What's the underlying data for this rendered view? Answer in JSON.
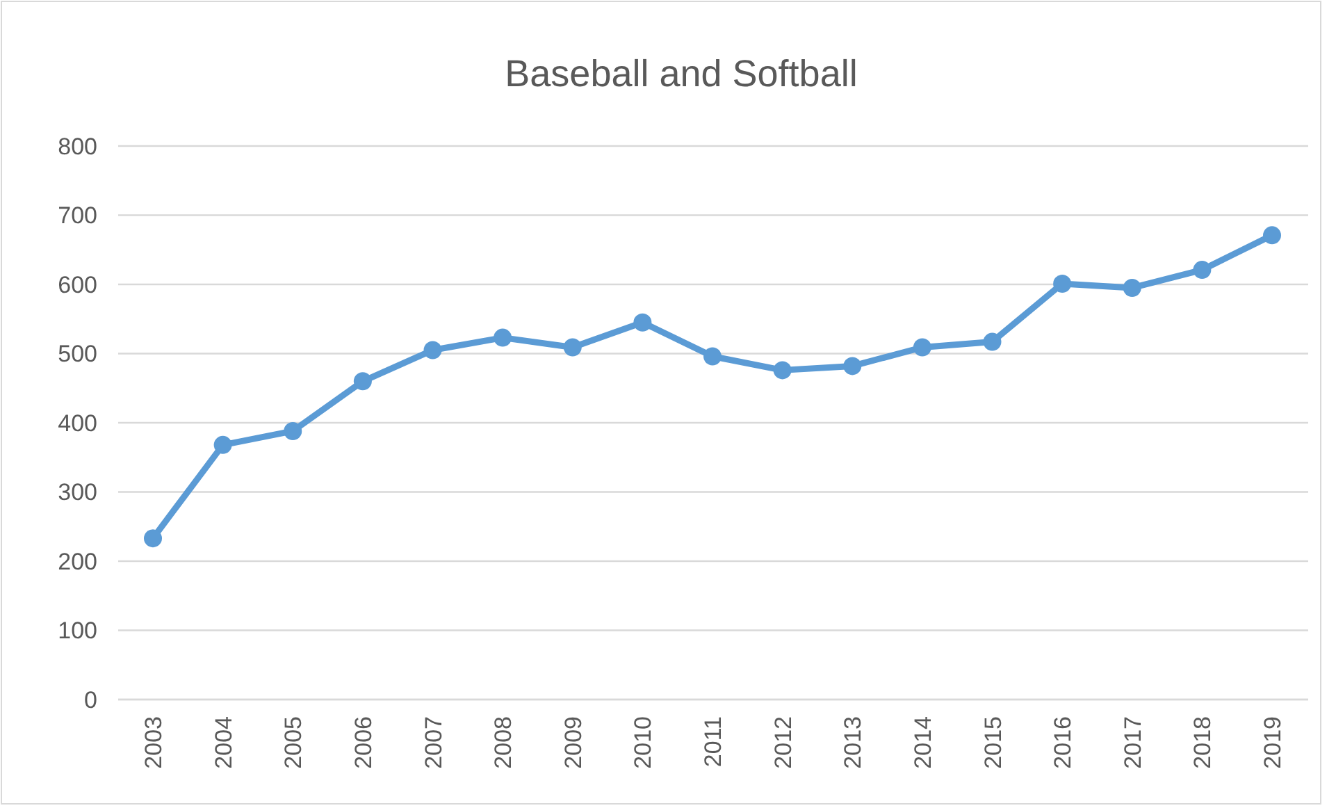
{
  "chart_data": {
    "type": "line",
    "title": "Baseball and Softball",
    "categories": [
      "2003",
      "2004",
      "2005",
      "2006",
      "2007",
      "2008",
      "2009",
      "2010",
      "2011",
      "2012",
      "2013",
      "2014",
      "2015",
      "2016",
      "2017",
      "2018",
      "2019"
    ],
    "series": [
      {
        "color": "#5b9bd5",
        "values": [
          233,
          368,
          388,
          460,
          505,
          523,
          509,
          545,
          496,
          476,
          482,
          509,
          517,
          601,
          595,
          621,
          671
        ]
      }
    ],
    "ylim": [
      0,
      800
    ],
    "yticks": [
      0,
      100,
      200,
      300,
      400,
      500,
      600,
      700,
      800
    ],
    "grid": "y",
    "marker": "circle"
  }
}
